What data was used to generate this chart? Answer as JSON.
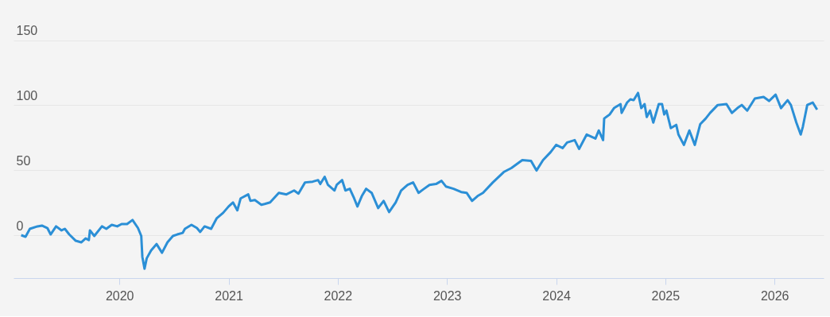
{
  "chart_data": {
    "type": "line",
    "x": [
      2019.1,
      2019.14,
      2019.18,
      2019.25,
      2019.29,
      2019.34,
      2019.37,
      2019.42,
      2019.47,
      2019.5,
      2019.54,
      2019.6,
      2019.65,
      2019.69,
      2019.72,
      2019.73,
      2019.77,
      2019.84,
      2019.88,
      2019.93,
      2019.98,
      2020.02,
      2020.07,
      2020.12,
      2020.17,
      2020.2,
      2020.21,
      2020.23,
      2020.25,
      2020.29,
      2020.34,
      2020.39,
      2020.44,
      2020.49,
      2020.53,
      2020.58,
      2020.6,
      2020.66,
      2020.71,
      2020.74,
      2020.78,
      2020.84,
      2020.89,
      2020.95,
      2021.0,
      2021.04,
      2021.08,
      2021.11,
      2021.18,
      2021.2,
      2021.24,
      2021.3,
      2021.33,
      2021.38,
      2021.46,
      2021.53,
      2021.6,
      2021.64,
      2021.7,
      2021.77,
      2021.82,
      2021.84,
      2021.88,
      2021.91,
      2021.97,
      2021.99,
      2022.04,
      2022.07,
      2022.11,
      2022.15,
      2022.18,
      2022.22,
      2022.26,
      2022.31,
      2022.37,
      2022.42,
      2022.47,
      2022.53,
      2022.58,
      2022.64,
      2022.69,
      2022.74,
      2022.79,
      2022.84,
      2022.9,
      2022.95,
      2022.99,
      2023.06,
      2023.13,
      2023.18,
      2023.23,
      2023.28,
      2023.33,
      2023.42,
      2023.52,
      2023.59,
      2023.69,
      2023.77,
      2023.82,
      2023.88,
      2023.95,
      2024.0,
      2024.06,
      2024.1,
      2024.17,
      2024.21,
      2024.28,
      2024.36,
      2024.39,
      2024.43,
      2024.44,
      2024.49,
      2024.53,
      2024.59,
      2024.6,
      2024.65,
      2024.68,
      2024.71,
      2024.75,
      2024.78,
      2024.81,
      2024.83,
      2024.86,
      2024.89,
      2024.94,
      2024.97,
      2024.99,
      2025.01,
      2025.05,
      2025.1,
      2025.12,
      2025.17,
      2025.22,
      2025.27,
      2025.32,
      2025.37,
      2025.41,
      2025.48,
      2025.56,
      2025.61,
      2025.66,
      2025.7,
      2025.75,
      2025.82,
      2025.9,
      2025.95,
      2026.01,
      2026.06,
      2026.12,
      2026.15,
      2026.2,
      2026.24,
      2026.26,
      2026.3,
      2026.35,
      2026.39
    ],
    "series": [
      {
        "color": "#2b8fd6",
        "values": [
          0,
          -1.2,
          4.9,
          6.8,
          7.4,
          5.5,
          0.6,
          6.8,
          3.7,
          4.9,
          0.6,
          -4.3,
          -5.5,
          -2.5,
          -3.7,
          3.7,
          -0.6,
          6.8,
          4.9,
          8.0,
          6.8,
          8.6,
          8.6,
          11.7,
          5.5,
          -0.6,
          -16.6,
          -25.8,
          -17.8,
          -11.7,
          -6.8,
          -13.5,
          -5.5,
          -0.6,
          0.6,
          1.8,
          4.9,
          8.0,
          5.5,
          2.5,
          6.8,
          4.9,
          12.9,
          17.2,
          22.1,
          25.2,
          19.1,
          28.3,
          31.4,
          26.4,
          27.1,
          23.4,
          24.0,
          25.2,
          32.6,
          31.4,
          34.4,
          32.0,
          40.6,
          41.2,
          42.4,
          39.4,
          44.9,
          38.7,
          34.4,
          38.7,
          42.4,
          34.4,
          35.7,
          28.3,
          22.1,
          30.1,
          35.7,
          32.6,
          20.9,
          26.4,
          17.8,
          25.2,
          34.4,
          38.7,
          40.6,
          32.6,
          35.7,
          38.7,
          39.4,
          41.8,
          37.5,
          35.7,
          33.2,
          32.6,
          26.4,
          30.1,
          32.6,
          40.6,
          48.6,
          51.7,
          57.8,
          57.2,
          49.8,
          57.8,
          64.0,
          69.5,
          67.0,
          71.3,
          73.2,
          66.4,
          77.5,
          74.4,
          80.6,
          73.2,
          89.8,
          92.9,
          97.8,
          100.9,
          94.1,
          102.1,
          104.6,
          103.9,
          109.5,
          97.8,
          100.9,
          91.0,
          95.9,
          86.7,
          100.9,
          100.9,
          92.9,
          95.9,
          82.4,
          84.9,
          77.5,
          69.5,
          80.6,
          69.5,
          85.5,
          89.8,
          94.1,
          100.2,
          100.9,
          94.1,
          97.8,
          100.2,
          95.9,
          105.2,
          106.4,
          103.3,
          108.2,
          97.8,
          103.9,
          100.2,
          86.7,
          77.5,
          83.6,
          100.2,
          102.1,
          96.6
        ]
      }
    ],
    "xlim": [
      2019.03,
      2026.45
    ],
    "xticks": [
      2020,
      2021,
      2022,
      2023,
      2024,
      2025,
      2026
    ],
    "ylim": [
      -33,
      181
    ],
    "yticks": [
      0,
      50,
      100,
      150
    ],
    "grid": "y",
    "marker": "none",
    "line_style": "solid"
  }
}
